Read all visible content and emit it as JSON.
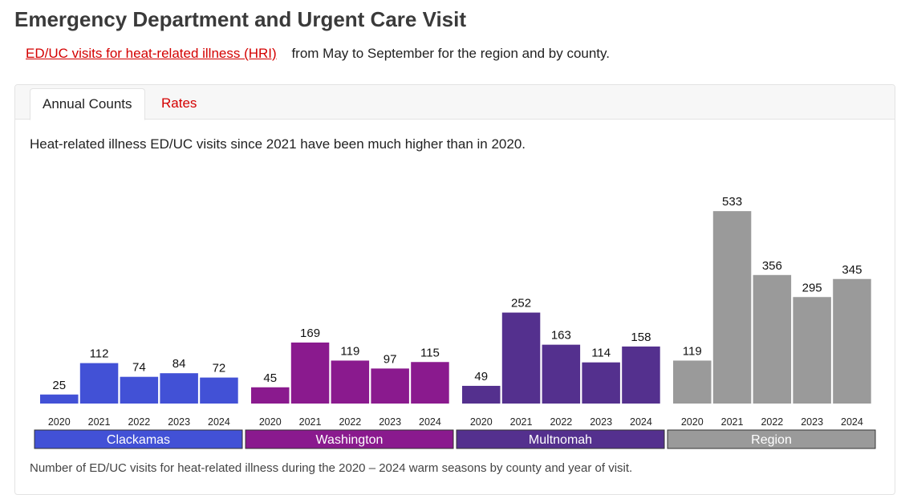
{
  "page": {
    "title": "Emergency Department and Urgent Care Visit",
    "intro_link": "ED/UC visits for heat-related illness (HRI)",
    "intro_text": "from May to September for the region and by county."
  },
  "tabs": [
    {
      "label": "Annual Counts",
      "active": true
    },
    {
      "label": "Rates",
      "active": false
    }
  ],
  "summary": "Heat-related illness ED/UC visits since 2021 have been much higher than in 2020.",
  "caption": "Number of ED/UC visits for heat-related illness during the 2020 – 2024 warm seasons by county and year of visit.",
  "colors": {
    "link": "#d40000",
    "Clackamas": "#4251d6",
    "Washington": "#8a1a8e",
    "Multnomah": "#54308e",
    "Region": "#9a9a9a"
  },
  "chart_data": {
    "type": "bar",
    "x": [
      "2020",
      "2021",
      "2022",
      "2023",
      "2024"
    ],
    "series": [
      {
        "name": "Clackamas",
        "values": [
          25,
          112,
          74,
          84,
          72
        ]
      },
      {
        "name": "Washington",
        "values": [
          45,
          169,
          119,
          97,
          115
        ]
      },
      {
        "name": "Multnomah",
        "values": [
          49,
          252,
          163,
          114,
          158
        ]
      },
      {
        "name": "Region",
        "values": [
          119,
          533,
          356,
          295,
          345
        ]
      }
    ],
    "ylim": [
      0,
      560
    ],
    "data_labels": true,
    "grid": false
  }
}
